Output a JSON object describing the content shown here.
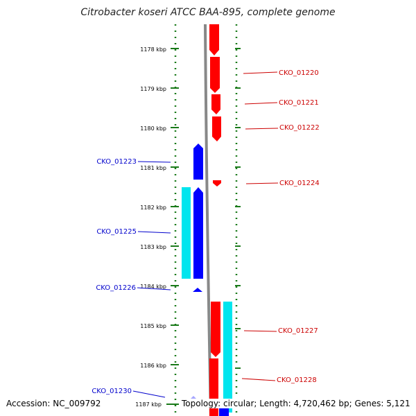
{
  "title": "Citrobacter koseri ATCC BAA-895, complete genome",
  "footer": {
    "accession": "Accession: NC_009792",
    "summary": "Topology: circular; Length: 4,720,462 bp; Genes: 5,121"
  },
  "colors": {
    "forward_cds": "#ff0000",
    "reverse_cds": "#0000ff",
    "rna": "#00e5ee",
    "ruler": "#1a7a1a",
    "backbone": "#888888",
    "forward_label": "#cc0000",
    "reverse_label": "#0000cc"
  },
  "ruler": {
    "ticks": [
      {
        "label": "1178 kbp"
      },
      {
        "label": "1179 kbp"
      },
      {
        "label": "1180 kbp"
      },
      {
        "label": "1181 kbp"
      },
      {
        "label": "1182 kbp"
      },
      {
        "label": "1183 kbp"
      },
      {
        "label": "1184 kbp"
      },
      {
        "label": "1185 kbp"
      },
      {
        "label": "1186 kbp"
      },
      {
        "label": "1187 kbp"
      }
    ]
  },
  "genes": {
    "forward": [
      {
        "label": "CKO_01220"
      },
      {
        "label": "CKO_01221"
      },
      {
        "label": "CKO_01222"
      },
      {
        "label": "CKO_01224"
      },
      {
        "label": "CKO_01227"
      },
      {
        "label": "CKO_01228"
      }
    ],
    "reverse": [
      {
        "label": "CKO_01223"
      },
      {
        "label": "CKO_01225"
      },
      {
        "label": "CKO_01226"
      },
      {
        "label": "CKO_01230"
      }
    ]
  }
}
